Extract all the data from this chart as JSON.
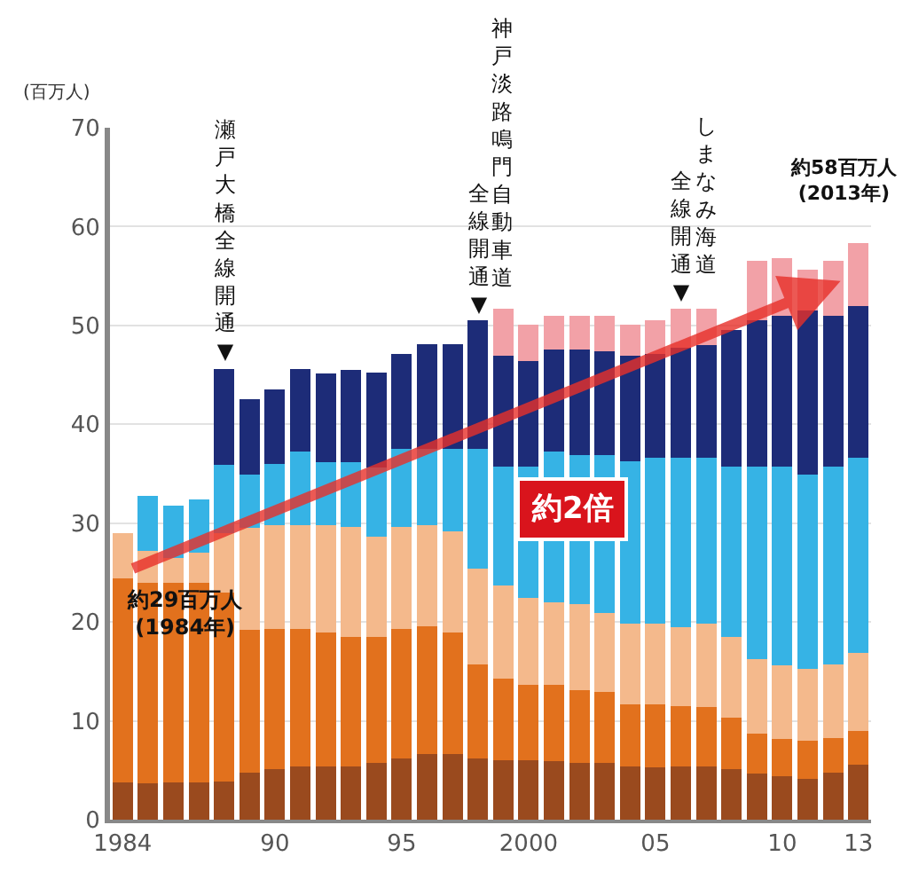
{
  "chart_data": {
    "type": "bar",
    "stacked": true,
    "ylabel": "(百万人)",
    "categories": [
      "1984",
      null,
      null,
      null,
      null,
      null,
      "90",
      null,
      null,
      null,
      null,
      "95",
      null,
      null,
      null,
      null,
      "2000",
      null,
      null,
      null,
      null,
      "05",
      null,
      null,
      null,
      null,
      "10",
      null,
      null,
      "13"
    ],
    "series": [
      {
        "color": "#9a4a1e",
        "values": [
          3.8,
          3.7,
          3.8,
          3.8,
          3.9,
          4.8,
          5.1,
          5.4,
          5.4,
          5.4,
          5.7,
          6.2,
          6.6,
          6.6,
          6.2,
          6.0,
          6.0,
          5.9,
          5.7,
          5.7,
          5.4,
          5.3,
          5.4,
          5.4,
          5.1,
          4.7,
          4.4,
          4.1,
          4.8,
          5.6
        ]
      },
      {
        "color": "#e2711d",
        "values": [
          20.6,
          20.3,
          20.2,
          20.2,
          19.1,
          14.4,
          14.2,
          13.9,
          13.5,
          13.1,
          12.8,
          13.1,
          13.0,
          12.3,
          9.5,
          8.3,
          7.6,
          7.7,
          7.4,
          7.2,
          6.3,
          6.4,
          6.1,
          6.0,
          5.2,
          4.0,
          3.8,
          3.9,
          3.5,
          3.4
        ]
      },
      {
        "color": "#f4b98c",
        "values": [
          4.6,
          3.2,
          2.5,
          3.0,
          6.0,
          10.3,
          10.5,
          10.5,
          10.9,
          11.1,
          10.1,
          10.3,
          10.2,
          10.3,
          9.7,
          9.4,
          8.8,
          8.4,
          8.7,
          8.0,
          8.1,
          8.1,
          8.0,
          8.4,
          8.2,
          7.5,
          7.4,
          7.3,
          7.4,
          7.9
        ]
      },
      {
        "color": "#36b3e5",
        "values": [
          null,
          5.6,
          5.3,
          5.4,
          6.9,
          5.4,
          6.2,
          7.4,
          6.4,
          6.6,
          7.0,
          7.9,
          7.7,
          8.3,
          12.1,
          12.0,
          13.3,
          15.2,
          15.1,
          16.0,
          16.5,
          16.8,
          17.1,
          16.8,
          17.2,
          19.5,
          20.1,
          19.6,
          20.0,
          19.7
        ]
      },
      {
        "color": "#1d2c78",
        "values": [
          null,
          null,
          null,
          null,
          9.7,
          7.6,
          7.5,
          8.4,
          8.9,
          9.3,
          9.6,
          9.6,
          10.6,
          10.6,
          13.0,
          11.2,
          10.7,
          10.4,
          10.7,
          10.5,
          10.6,
          10.5,
          11.1,
          11.4,
          13.8,
          14.8,
          15.3,
          16.6,
          15.3,
          15.4
        ]
      },
      {
        "color": "#f2a1a7",
        "values": [
          null,
          null,
          null,
          null,
          null,
          null,
          null,
          null,
          null,
          null,
          null,
          null,
          null,
          null,
          null,
          4.8,
          3.7,
          3.4,
          3.4,
          3.6,
          3.2,
          3.4,
          4.0,
          3.7,
          null,
          6.0,
          5.8,
          4.1,
          5.5,
          6.3
        ]
      }
    ],
    "ylim": [
      0,
      70
    ],
    "yticks": [
      0,
      10,
      20,
      30,
      40,
      50,
      60,
      70
    ],
    "grid": "y",
    "annotations": [
      "瀬戸大橋全線開通▼",
      "神戸淡路鳴門自動車道",
      "全線開通▼",
      "しまなみ海道",
      "全線開通▼",
      "約58百万人\n(2013年)",
      "約29百万人\n(1984年)",
      "約2倍"
    ]
  }
}
